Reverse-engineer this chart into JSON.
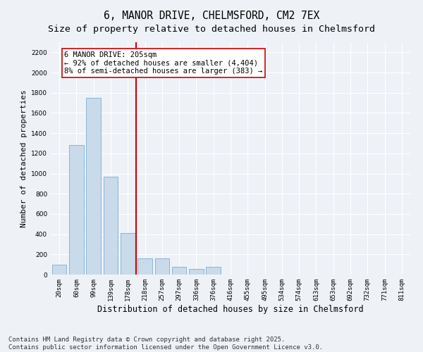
{
  "title": "6, MANOR DRIVE, CHELMSFORD, CM2 7EX",
  "subtitle": "Size of property relative to detached houses in Chelmsford",
  "xlabel": "Distribution of detached houses by size in Chelmsford",
  "ylabel": "Number of detached properties",
  "categories": [
    "20sqm",
    "60sqm",
    "99sqm",
    "139sqm",
    "178sqm",
    "218sqm",
    "257sqm",
    "297sqm",
    "336sqm",
    "376sqm",
    "416sqm",
    "455sqm",
    "495sqm",
    "534sqm",
    "574sqm",
    "613sqm",
    "653sqm",
    "692sqm",
    "732sqm",
    "771sqm",
    "811sqm"
  ],
  "values": [
    100,
    1280,
    1750,
    970,
    410,
    160,
    160,
    80,
    55,
    80,
    0,
    0,
    0,
    0,
    0,
    0,
    0,
    0,
    0,
    0,
    0
  ],
  "bar_color": "#c9daea",
  "bar_edge_color": "#7aaed6",
  "vline_color": "#cc0000",
  "vline_x": 4.5,
  "annotation_text": "6 MANOR DRIVE: 205sqm\n← 92% of detached houses are smaller (4,404)\n8% of semi-detached houses are larger (383) →",
  "annotation_box_color": "#ffffff",
  "annotation_box_edge": "#cc0000",
  "ylim": [
    0,
    2300
  ],
  "yticks": [
    0,
    200,
    400,
    600,
    800,
    1000,
    1200,
    1400,
    1600,
    1800,
    2000,
    2200
  ],
  "background_color": "#eef2f7",
  "grid_color": "#ffffff",
  "footer_line1": "Contains HM Land Registry data © Crown copyright and database right 2025.",
  "footer_line2": "Contains public sector information licensed under the Open Government Licence v3.0.",
  "title_fontsize": 10.5,
  "subtitle_fontsize": 9.5,
  "tick_fontsize": 6.5,
  "ylabel_fontsize": 8,
  "xlabel_fontsize": 8.5,
  "annotation_fontsize": 7.5,
  "footer_fontsize": 6.5
}
